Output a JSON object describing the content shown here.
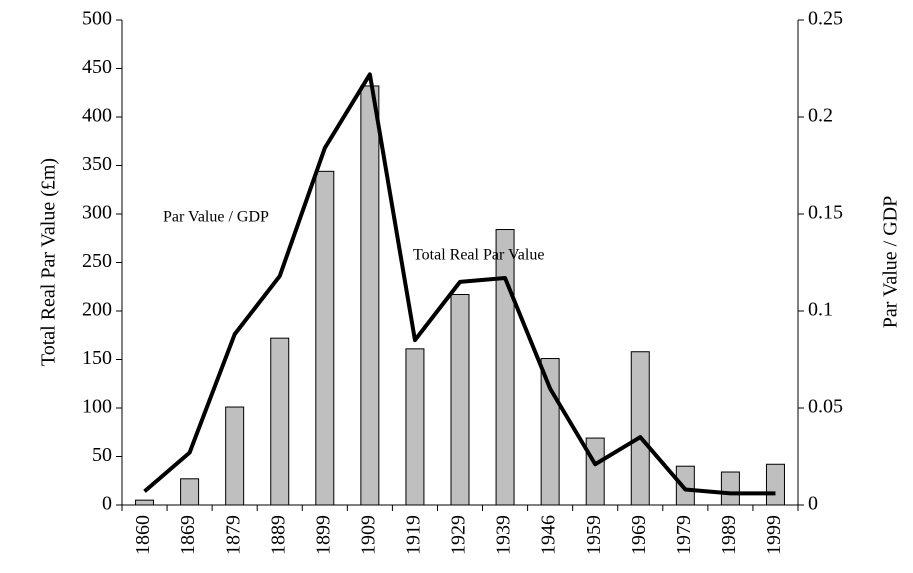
{
  "chart_data": {
    "type": "bar_line",
    "y_label": "Total Real Par Value (£m)",
    "y2_label": "Par Value / GDP",
    "categories": [
      "1860",
      "1869",
      "1879",
      "1889",
      "1899",
      "1909",
      "1919",
      "1929",
      "1939",
      "1946",
      "1959",
      "1969",
      "1979",
      "1989",
      "1999"
    ],
    "series": [
      {
        "name": "Total Real Par Value",
        "type": "bar",
        "color": "#bfbfbf",
        "values": [
          5,
          27,
          101,
          172,
          344,
          432,
          161,
          217,
          284,
          151,
          69,
          158,
          40,
          34,
          42
        ]
      },
      {
        "name": "Par Value / GDP",
        "type": "line",
        "axis": "y2",
        "color": "#000000",
        "values": [
          0.007,
          0.027,
          0.088,
          0.118,
          0.184,
          0.222,
          0.085,
          0.115,
          0.117,
          0.06,
          0.021,
          0.035,
          0.008,
          0.006,
          0.006
        ]
      }
    ],
    "ylim": [
      0,
      500
    ],
    "yticks": [
      0,
      50,
      100,
      150,
      200,
      250,
      300,
      350,
      400,
      450,
      500
    ],
    "y2lim": [
      0,
      0.25
    ],
    "y2ticks": [
      0,
      0.05,
      0.1,
      0.15,
      0.2,
      0.25
    ],
    "grid": false
  }
}
